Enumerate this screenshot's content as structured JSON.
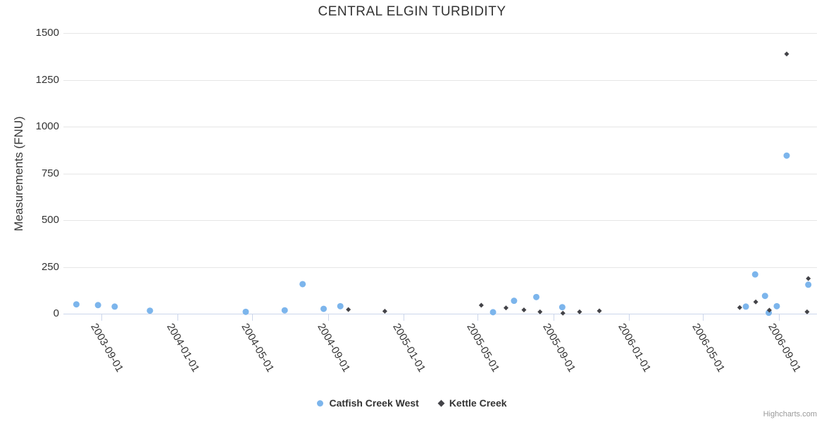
{
  "credits": "Highcharts.com",
  "chart_data": {
    "type": "scatter",
    "title": "CENTRAL ELGIN TURBIDITY",
    "xlabel": "",
    "ylabel": "Measurements (FNU)",
    "x_type": "datetime",
    "x_range": [
      "2003-07-01",
      "2006-11-01"
    ],
    "ylim": [
      0,
      1500
    ],
    "yticks": [
      0,
      250,
      500,
      750,
      1000,
      1250,
      1500
    ],
    "xticks": [
      "2003-09-01",
      "2004-01-01",
      "2004-05-01",
      "2004-09-01",
      "2005-01-01",
      "2005-05-01",
      "2005-09-01",
      "2006-01-01",
      "2006-05-01",
      "2006-09-01"
    ],
    "grid": true,
    "legend_position": "bottom-center",
    "series": [
      {
        "name": "Catfish Creek West",
        "marker": "circle",
        "color": "#7cb5ec",
        "points": [
          [
            "2003-07-22",
            50
          ],
          [
            "2003-08-26",
            46
          ],
          [
            "2003-09-22",
            38
          ],
          [
            "2003-11-18",
            16
          ],
          [
            "2004-04-21",
            10
          ],
          [
            "2004-06-23",
            18
          ],
          [
            "2004-07-22",
            158
          ],
          [
            "2004-08-25",
            26
          ],
          [
            "2004-09-21",
            40
          ],
          [
            "2005-05-26",
            8
          ],
          [
            "2005-06-29",
            69
          ],
          [
            "2005-08-04",
            89
          ],
          [
            "2005-09-15",
            35
          ],
          [
            "2006-07-09",
            38
          ],
          [
            "2006-07-24",
            210
          ],
          [
            "2006-08-09",
            95
          ],
          [
            "2006-08-15",
            5
          ],
          [
            "2006-08-28",
            40
          ],
          [
            "2006-09-13",
            845
          ],
          [
            "2006-10-18",
            155
          ]
        ]
      },
      {
        "name": "Kettle Creek",
        "marker": "diamond",
        "color": "#434348",
        "points": [
          [
            "2004-10-04",
            22
          ],
          [
            "2004-12-02",
            13
          ],
          [
            "2005-05-07",
            45
          ],
          [
            "2005-06-16",
            31
          ],
          [
            "2005-07-15",
            20
          ],
          [
            "2005-08-10",
            10
          ],
          [
            "2005-09-16",
            3
          ],
          [
            "2005-10-13",
            10
          ],
          [
            "2005-11-14",
            15
          ],
          [
            "2006-06-29",
            33
          ],
          [
            "2006-07-25",
            63
          ],
          [
            "2006-08-16",
            19
          ],
          [
            "2006-09-13",
            1388
          ],
          [
            "2006-10-16",
            10
          ],
          [
            "2006-10-18",
            188
          ]
        ]
      }
    ],
    "colors": {
      "grid_line": "#e6e6e6",
      "axis_line": "#ccd6eb",
      "title_text": "#333333",
      "label_text": "#333333",
      "credits_text": "#999999"
    }
  }
}
